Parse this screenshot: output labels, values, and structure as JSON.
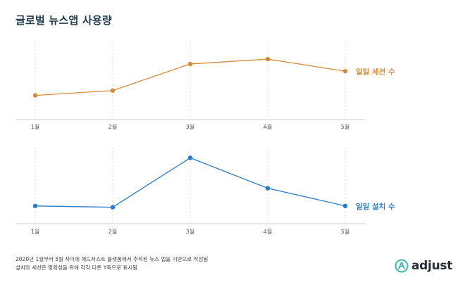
{
  "title": "글로벌 뉴스앱 사용량",
  "footnote": {
    "line1": "2020년 1월부터 5월 사이에 애드저스트 플랫폼에서 추적된 뉴스 앱을 기반으로 작성됨",
    "line2": "설치와 세션은 명확성을 위해 각각 다른 Y축으로 표시됨"
  },
  "logo": {
    "text": "adjust"
  },
  "colors": {
    "sessions": "#d98b3a",
    "installs": "#2a7cc7",
    "grid": "#d5d5d5",
    "axis": "#cccccc",
    "logo_accent": "#3fb8a7"
  },
  "chart_data": [
    {
      "type": "line",
      "categories": [
        "1월",
        "2월",
        "3월",
        "4월",
        "5월"
      ],
      "series": [
        {
          "name": "일일 세션 수",
          "values": [
            1.0,
            1.2,
            2.3,
            2.5,
            2.0
          ]
        }
      ],
      "ylim": [
        0,
        3.2
      ],
      "grid": true,
      "y_axis_labels": false,
      "legend": "right"
    },
    {
      "type": "line",
      "categories": [
        "1월",
        "2월",
        "3월",
        "4월",
        "5월"
      ],
      "series": [
        {
          "name": "일일 설치 수",
          "values": [
            0.7,
            0.65,
            2.6,
            1.4,
            0.7
          ]
        }
      ],
      "ylim": [
        0,
        3.0
      ],
      "grid": true,
      "y_axis_labels": false,
      "legend": "right"
    }
  ]
}
